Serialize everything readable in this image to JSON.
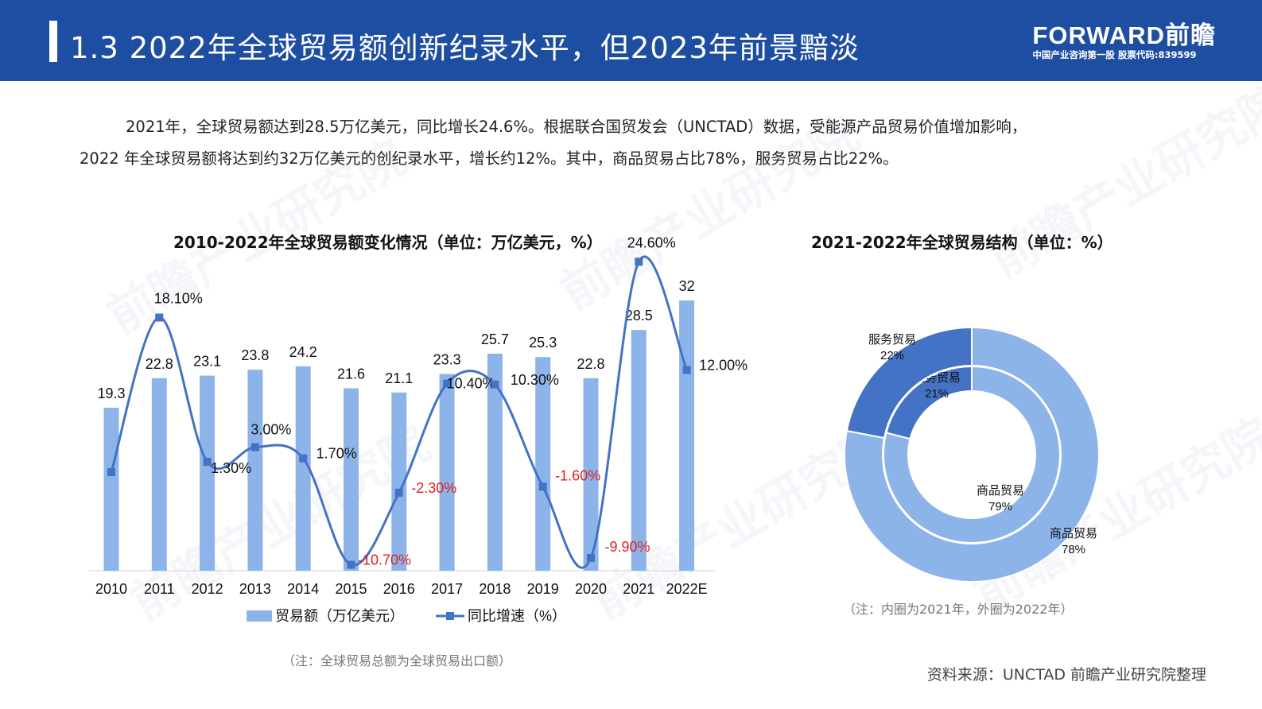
{
  "header": {
    "title": "1.3  2022年全球贸易额创新纪录水平，但2023年前景黯淡",
    "brand_logo": "FORWARD前瞻",
    "brand_sub": "中国产业咨询第一股  股票代码:839599",
    "bg_color": "#1e4ea1"
  },
  "intro": {
    "p1": "2021年，全球贸易额达到28.5万亿美元，同比增长24.6%。根据联合国贸发会（UNCTAD）数据，受能源产品贸易价值增加影响，",
    "p2": "2022 年全球贸易额将达到约32万亿美元的创纪录水平，增长约12%。其中，商品贸易占比78%，服务贸易占比22%。"
  },
  "watermark": {
    "text": "前瞻产业研究院"
  },
  "chart_data": [
    {
      "type": "bar",
      "title": "2010-2022年全球贸易额变化情况（单位：万亿美元，%）",
      "categories": [
        "2010",
        "2011",
        "2012",
        "2013",
        "2014",
        "2015",
        "2016",
        "2017",
        "2018",
        "2019",
        "2020",
        "2021",
        "2022E"
      ],
      "series": [
        {
          "name": "贸易额（万亿美元）",
          "kind": "bar",
          "color": "#8db4e8",
          "values": [
            19.3,
            22.8,
            23.1,
            23.8,
            24.2,
            21.6,
            21.1,
            23.3,
            25.7,
            25.3,
            22.8,
            28.5,
            32
          ],
          "labels": [
            "19.3",
            "22.8",
            "23.1",
            "23.8",
            "24.2",
            "21.6",
            "21.1",
            "23.3",
            "25.7",
            "25.3",
            "22.8",
            "28.5",
            "32"
          ]
        },
        {
          "name": "同比增速（%）",
          "kind": "line",
          "color": "#4472c4",
          "values": [
            null,
            18.1,
            1.3,
            3.0,
            1.7,
            -10.7,
            -2.3,
            10.4,
            10.3,
            -1.6,
            -9.9,
            24.6,
            12.0
          ],
          "labels": [
            "",
            "18.10%",
            "1.30%",
            "3.00%",
            "1.70%",
            "-10.70%",
            "-2.30%",
            "10.40%",
            "10.30%",
            "-1.60%",
            "-9.90%",
            "24.60%",
            "12.00%"
          ]
        }
      ],
      "negative_label_color": "#e02020",
      "legend_position": "bottom",
      "note": "（注：全球贸易总额为全球贸易出口额）"
    },
    {
      "type": "pie",
      "subtype": "donut",
      "title": "2021-2022年全球贸易结构（单位：%）",
      "series": [
        {
          "name": "2021",
          "ring": "inner",
          "slices": [
            {
              "label": "商品贸易",
              "value": 79,
              "text": "79%",
              "color": "#8db4e8"
            },
            {
              "label": "服务贸易",
              "value": 21,
              "text": "21%",
              "color": "#4472c4"
            }
          ]
        },
        {
          "name": "2022",
          "ring": "outer",
          "slices": [
            {
              "label": "商品贸易",
              "value": 78,
              "text": "78%",
              "color": "#8db4e8"
            },
            {
              "label": "服务贸易",
              "value": 22,
              "text": "22%",
              "color": "#4472c4"
            }
          ]
        }
      ],
      "note": "（注：内圈为2021年，外圈为2022年）"
    }
  ],
  "source": "资料来源：UNCTAD 前瞻产业研究院整理"
}
